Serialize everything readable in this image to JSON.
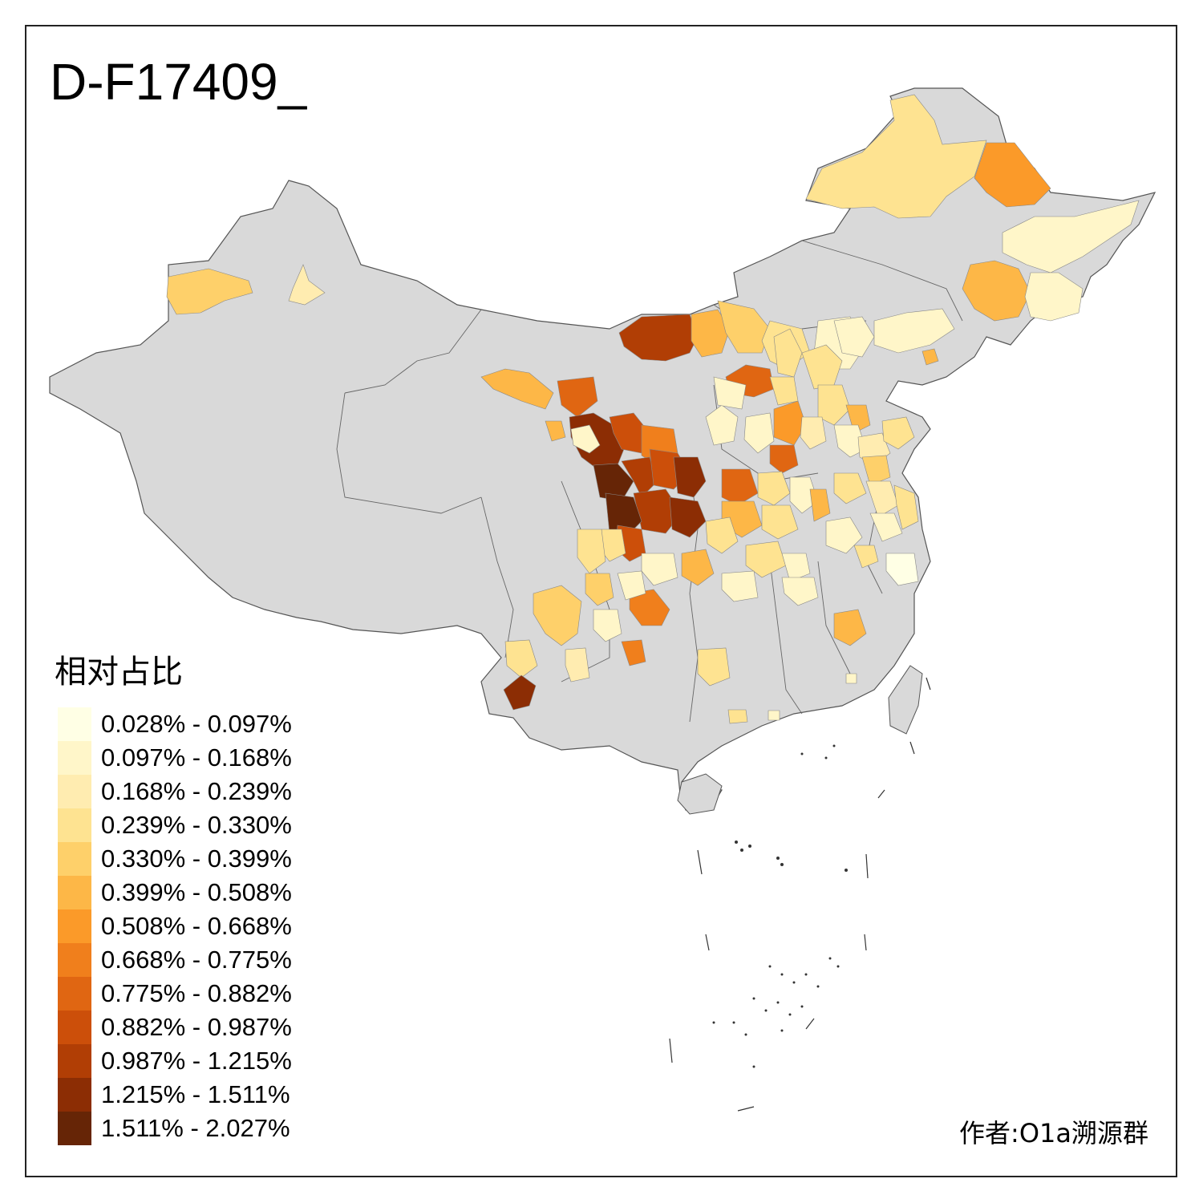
{
  "map": {
    "title": "D-F17409_",
    "base_color": "#d9d9d9",
    "border_color": "#555555"
  },
  "legend": {
    "title": "相对占比",
    "bins": [
      {
        "label": "0.028% - 0.097%",
        "color": "#ffffe5"
      },
      {
        "label": "0.097% - 0.168%",
        "color": "#fff6c9"
      },
      {
        "label": "0.168% - 0.239%",
        "color": "#ffecb0"
      },
      {
        "label": "0.239% - 0.330%",
        "color": "#fee391"
      },
      {
        "label": "0.330% - 0.399%",
        "color": "#fed06a"
      },
      {
        "label": "0.399% - 0.508%",
        "color": "#fdb747"
      },
      {
        "label": "0.508% - 0.668%",
        "color": "#fb9a29"
      },
      {
        "label": "0.668% - 0.775%",
        "color": "#f07f1c"
      },
      {
        "label": "0.775% - 0.882%",
        "color": "#e06612"
      },
      {
        "label": "0.882% - 0.987%",
        "color": "#cc4f0a"
      },
      {
        "label": "0.987% - 1.215%",
        "color": "#b13e05"
      },
      {
        "label": "1.215% - 1.511%",
        "color": "#8c2d04"
      },
      {
        "label": "1.511% - 2.027%",
        "color": "#662506"
      }
    ]
  },
  "author": "作者:O1a溯源群"
}
